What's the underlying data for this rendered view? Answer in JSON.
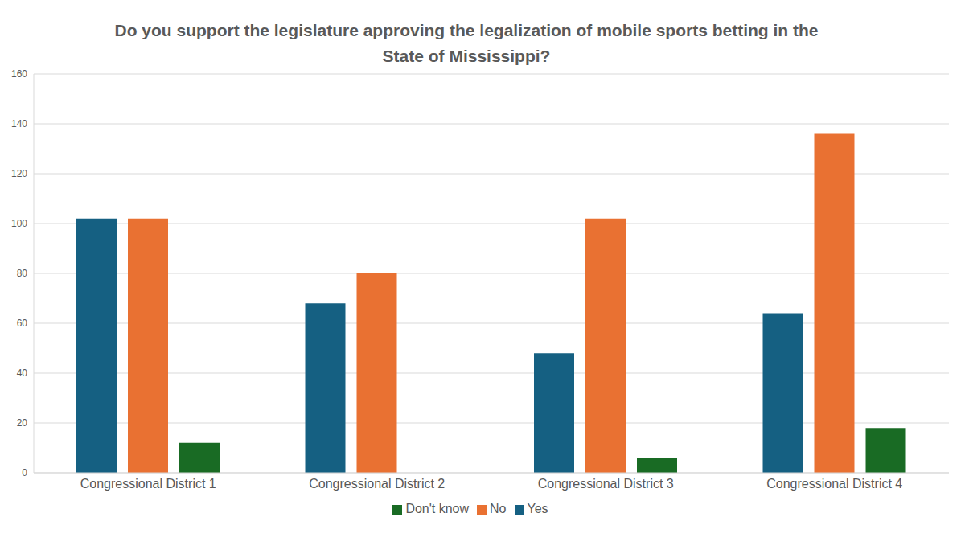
{
  "chart_data": {
    "type": "bar",
    "title": "Do you support the legislature approving the legalization of mobile sports betting in the State of Mississippi?",
    "categories": [
      "Congressional District 1",
      "Congressional District 2",
      "Congressional District 3",
      "Congressional District 4"
    ],
    "series": [
      {
        "name": "Yes",
        "color": "#156082",
        "values": [
          102,
          68,
          48,
          64
        ]
      },
      {
        "name": "No",
        "color": "#E97132",
        "values": [
          102,
          80,
          102,
          136
        ]
      },
      {
        "name": "Don't know",
        "color": "#196B24",
        "values": [
          12,
          0,
          6,
          18
        ]
      }
    ],
    "ylim": [
      0,
      160
    ],
    "yticks": [
      0,
      20,
      40,
      60,
      80,
      100,
      120,
      140,
      160
    ],
    "grid": true,
    "legend": "bottom"
  }
}
